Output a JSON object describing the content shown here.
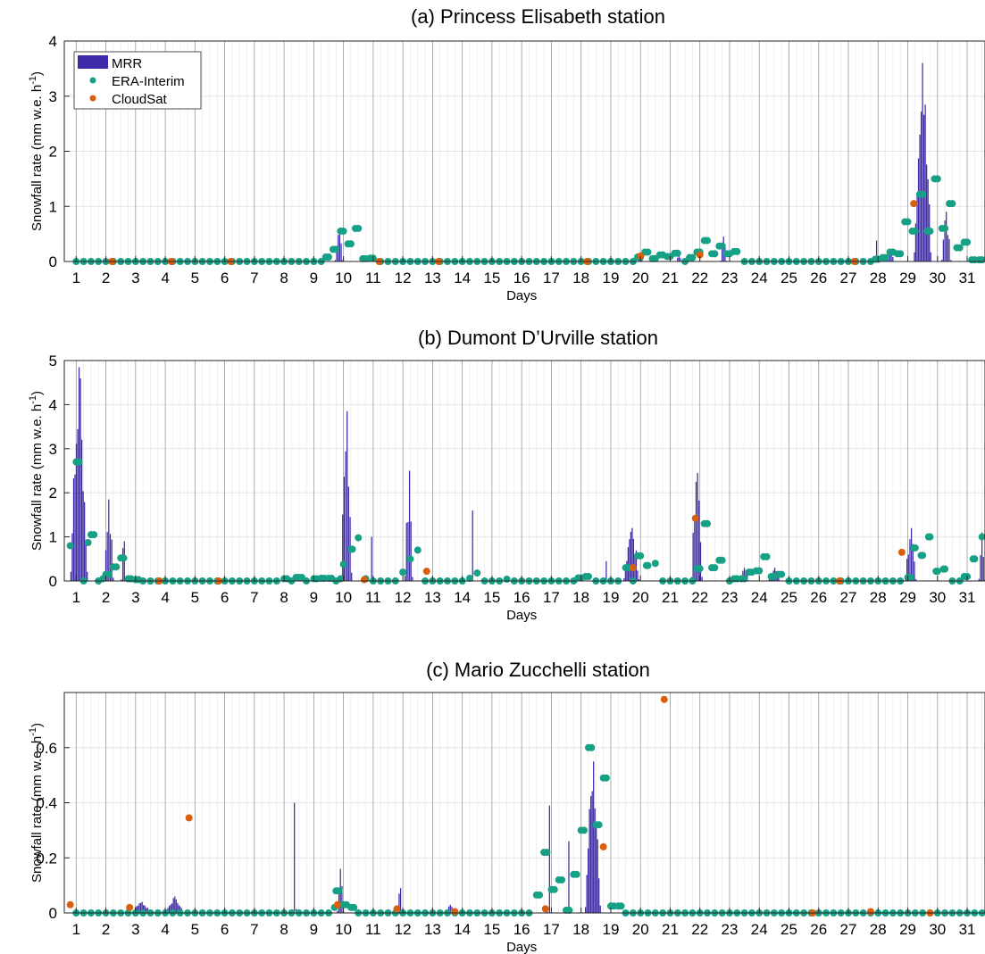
{
  "colors": {
    "mrr": "#3d2aa6",
    "era": "#16a085",
    "cloudsat": "#d95f0e",
    "grid": "#e6e6e6",
    "dayline": "#999999"
  },
  "legend": {
    "items": [
      "MRR",
      "ERA-Interim",
      "CloudSat"
    ]
  },
  "chart_data": [
    {
      "type": "bar",
      "title": "(a) Princess Elisabeth station",
      "xlabel": "Days",
      "ylabel": "Snowfall rate (mm w.e. h",
      "ylabel_sup": "-1",
      "ylabel_end": ")",
      "xlim": [
        0.6,
        31.6
      ],
      "ylim": [
        0,
        4
      ],
      "yticks": [
        "0",
        "1",
        "2",
        "3",
        "4"
      ],
      "xticks": [
        "1",
        "2",
        "3",
        "4",
        "5",
        "6",
        "7",
        "8",
        "9",
        "10",
        "11",
        "12",
        "13",
        "14",
        "15",
        "16",
        "17",
        "18",
        "19",
        "20",
        "21",
        "22",
        "23",
        "24",
        "25",
        "26",
        "27",
        "28",
        "29",
        "30",
        "31"
      ],
      "grid": true,
      "legend_position": "top-left",
      "mrr_peaks": [
        {
          "day": 9.85,
          "height": 0.6,
          "width": 0.25
        },
        {
          "day": 20.0,
          "height": 0.12,
          "width": 0.2
        },
        {
          "day": 21.3,
          "height": 0.1,
          "width": 0.2
        },
        {
          "day": 22.8,
          "height": 0.45,
          "width": 0.2
        },
        {
          "day": 27.9,
          "height": 0.38,
          "width": 0.1
        },
        {
          "day": 28.4,
          "height": 0.2,
          "width": 0.3
        },
        {
          "day": 29.5,
          "height": 3.6,
          "width": 0.55
        },
        {
          "day": 30.3,
          "height": 0.9,
          "width": 0.3
        }
      ],
      "era_nonzero": [
        {
          "x": 9.4,
          "y": 0.08
        },
        {
          "x": 9.65,
          "y": 0.22
        },
        {
          "x": 9.9,
          "y": 0.55
        },
        {
          "x": 10.15,
          "y": 0.32
        },
        {
          "x": 10.4,
          "y": 0.6
        },
        {
          "x": 10.65,
          "y": 0.05
        },
        {
          "x": 10.9,
          "y": 0.06
        },
        {
          "x": 19.9,
          "y": 0.08
        },
        {
          "x": 20.15,
          "y": 0.17
        },
        {
          "x": 20.4,
          "y": 0.05
        },
        {
          "x": 20.65,
          "y": 0.12
        },
        {
          "x": 20.9,
          "y": 0.09
        },
        {
          "x": 21.15,
          "y": 0.15
        },
        {
          "x": 21.65,
          "y": 0.07
        },
        {
          "x": 21.9,
          "y": 0.17
        },
        {
          "x": 22.15,
          "y": 0.38
        },
        {
          "x": 22.4,
          "y": 0.14
        },
        {
          "x": 22.65,
          "y": 0.28
        },
        {
          "x": 22.9,
          "y": 0.14
        },
        {
          "x": 23.15,
          "y": 0.18
        },
        {
          "x": 27.9,
          "y": 0.04
        },
        {
          "x": 28.15,
          "y": 0.07
        },
        {
          "x": 28.4,
          "y": 0.17
        },
        {
          "x": 28.65,
          "y": 0.14
        },
        {
          "x": 28.9,
          "y": 0.72
        },
        {
          "x": 29.15,
          "y": 0.55
        },
        {
          "x": 29.4,
          "y": 1.22
        },
        {
          "x": 29.65,
          "y": 0.55
        },
        {
          "x": 29.9,
          "y": 1.5
        },
        {
          "x": 30.15,
          "y": 0.6
        },
        {
          "x": 30.4,
          "y": 1.05
        },
        {
          "x": 30.65,
          "y": 0.25
        },
        {
          "x": 30.9,
          "y": 0.35
        },
        {
          "x": 31.15,
          "y": 0.03
        },
        {
          "x": 31.4,
          "y": 0.03
        }
      ],
      "cloudsat": [
        {
          "x": 2.2,
          "y": 0
        },
        {
          "x": 4.2,
          "y": 0
        },
        {
          "x": 6.2,
          "y": 0
        },
        {
          "x": 11.2,
          "y": 0
        },
        {
          "x": 13.2,
          "y": 0
        },
        {
          "x": 18.2,
          "y": 0
        },
        {
          "x": 20.0,
          "y": 0.1
        },
        {
          "x": 22.0,
          "y": 0.12
        },
        {
          "x": 27.2,
          "y": 0
        },
        {
          "x": 29.2,
          "y": 1.05
        }
      ]
    },
    {
      "type": "bar",
      "title": "(b) Dumont D’Urville station",
      "xlabel": "Days",
      "ylabel": "Snowfall rate (mm w.e. h",
      "ylabel_sup": "-1",
      "ylabel_end": ")",
      "xlim": [
        0.6,
        31.6
      ],
      "ylim": [
        0,
        5
      ],
      "yticks": [
        "0",
        "1",
        "2",
        "3",
        "4",
        "5"
      ],
      "xticks": [
        "1",
        "2",
        "3",
        "4",
        "5",
        "6",
        "7",
        "8",
        "9",
        "10",
        "11",
        "12",
        "13",
        "14",
        "15",
        "16",
        "17",
        "18",
        "19",
        "20",
        "21",
        "22",
        "23",
        "24",
        "25",
        "26",
        "27",
        "28",
        "29",
        "30",
        "31"
      ],
      "grid": true,
      "mrr_peaks": [
        {
          "day": 1.1,
          "height": 4.85,
          "width": 0.55
        },
        {
          "day": 2.1,
          "height": 1.85,
          "width": 0.3
        },
        {
          "day": 2.6,
          "height": 0.9,
          "width": 0.15
        },
        {
          "day": 10.1,
          "height": 3.85,
          "width": 0.35
        },
        {
          "day": 10.9,
          "height": 1.0,
          "width": 0.1
        },
        {
          "day": 12.2,
          "height": 2.5,
          "width": 0.25
        },
        {
          "day": 14.3,
          "height": 1.6,
          "width": 0.1
        },
        {
          "day": 18.8,
          "height": 0.45,
          "width": 0.1
        },
        {
          "day": 19.7,
          "height": 1.2,
          "width": 0.5
        },
        {
          "day": 21.9,
          "height": 2.45,
          "width": 0.35
        },
        {
          "day": 23.5,
          "height": 0.3,
          "width": 0.3
        },
        {
          "day": 24.5,
          "height": 0.3,
          "width": 0.4
        },
        {
          "day": 29.1,
          "height": 1.2,
          "width": 0.35
        },
        {
          "day": 31.5,
          "height": 1.1,
          "width": 0.2
        }
      ],
      "era_nonzero": [
        {
          "x": 0.8,
          "y": 0.8
        },
        {
          "x": 1.1,
          "y": 2.7
        },
        {
          "x": 1.4,
          "y": 0.87
        },
        {
          "x": 1.6,
          "y": 1.05
        },
        {
          "x": 1.9,
          "y": 0.05
        },
        {
          "x": 2.1,
          "y": 0.15
        },
        {
          "x": 2.35,
          "y": 0.32
        },
        {
          "x": 2.6,
          "y": 0.52
        },
        {
          "x": 2.85,
          "y": 0.05
        },
        {
          "x": 3.1,
          "y": 0.03
        },
        {
          "x": 8.1,
          "y": 0.05
        },
        {
          "x": 8.4,
          "y": 0.08
        },
        {
          "x": 8.6,
          "y": 0.08
        },
        {
          "x": 9.1,
          "y": 0.05
        },
        {
          "x": 9.35,
          "y": 0.06
        },
        {
          "x": 9.6,
          "y": 0.06
        },
        {
          "x": 9.9,
          "y": 0.05
        },
        {
          "x": 10.0,
          "y": 0.38
        },
        {
          "x": 10.3,
          "y": 0.72
        },
        {
          "x": 10.5,
          "y": 0.98
        },
        {
          "x": 10.75,
          "y": 0.05
        },
        {
          "x": 12.0,
          "y": 0.2
        },
        {
          "x": 12.25,
          "y": 0.5
        },
        {
          "x": 12.5,
          "y": 0.7
        },
        {
          "x": 14.25,
          "y": 0.06
        },
        {
          "x": 14.5,
          "y": 0.18
        },
        {
          "x": 15.5,
          "y": 0.04
        },
        {
          "x": 17.9,
          "y": 0.07
        },
        {
          "x": 18.15,
          "y": 0.1
        },
        {
          "x": 19.6,
          "y": 0.3
        },
        {
          "x": 19.9,
          "y": 0.57
        },
        {
          "x": 20.2,
          "y": 0.35
        },
        {
          "x": 20.5,
          "y": 0.4
        },
        {
          "x": 21.9,
          "y": 0.28
        },
        {
          "x": 22.15,
          "y": 1.3
        },
        {
          "x": 22.4,
          "y": 0.3
        },
        {
          "x": 22.65,
          "y": 0.47
        },
        {
          "x": 23.15,
          "y": 0.05
        },
        {
          "x": 23.4,
          "y": 0.05
        },
        {
          "x": 23.65,
          "y": 0.2
        },
        {
          "x": 23.9,
          "y": 0.23
        },
        {
          "x": 24.15,
          "y": 0.55
        },
        {
          "x": 24.4,
          "y": 0.1
        },
        {
          "x": 24.65,
          "y": 0.15
        },
        {
          "x": 29.1,
          "y": 0.08
        },
        {
          "x": 29.2,
          "y": 0.75
        },
        {
          "x": 29.45,
          "y": 0.58
        },
        {
          "x": 29.7,
          "y": 1.0
        },
        {
          "x": 29.95,
          "y": 0.22
        },
        {
          "x": 30.2,
          "y": 0.27
        },
        {
          "x": 30.9,
          "y": 0.1
        },
        {
          "x": 31.2,
          "y": 0.5
        },
        {
          "x": 31.5,
          "y": 1.0
        }
      ],
      "cloudsat": [
        {
          "x": 3.8,
          "y": 0
        },
        {
          "x": 5.8,
          "y": 0
        },
        {
          "x": 10.7,
          "y": 0.03
        },
        {
          "x": 12.8,
          "y": 0.22
        },
        {
          "x": 19.75,
          "y": 0.3
        },
        {
          "x": 21.85,
          "y": 1.42
        },
        {
          "x": 26.7,
          "y": 0
        },
        {
          "x": 28.8,
          "y": 0.65
        }
      ]
    },
    {
      "type": "bar",
      "title": "(c) Mario Zucchelli station",
      "xlabel": "Days",
      "ylabel": "Snowfall rate (mm w.e. h",
      "ylabel_sup": "-1",
      "ylabel_end": ")",
      "xlim": [
        0.6,
        31.6
      ],
      "ylim": [
        0,
        0.8
      ],
      "yticks": [
        "0",
        "0.2",
        "0.4",
        "0.6"
      ],
      "ytick_values": [
        0,
        0.2,
        0.4,
        0.6
      ],
      "xticks": [
        "1",
        "2",
        "3",
        "4",
        "5",
        "6",
        "7",
        "8",
        "9",
        "10",
        "11",
        "12",
        "13",
        "14",
        "15",
        "16",
        "17",
        "18",
        "19",
        "20",
        "21",
        "22",
        "23",
        "24",
        "25",
        "26",
        "27",
        "28",
        "29",
        "30",
        "31"
      ],
      "grid": true,
      "mrr_peaks": [
        {
          "day": 3.2,
          "height": 0.04,
          "width": 0.6
        },
        {
          "day": 4.3,
          "height": 0.06,
          "width": 0.6
        },
        {
          "day": 8.35,
          "height": 0.4,
          "width": 0.12
        },
        {
          "day": 9.9,
          "height": 0.16,
          "width": 0.2
        },
        {
          "day": 11.9,
          "height": 0.09,
          "width": 0.15
        },
        {
          "day": 13.6,
          "height": 0.03,
          "width": 0.3
        },
        {
          "day": 16.9,
          "height": 0.39,
          "width": 0.08
        },
        {
          "day": 17.55,
          "height": 0.26,
          "width": 0.08
        },
        {
          "day": 18.4,
          "height": 0.55,
          "width": 0.5
        }
      ],
      "era_nonzero": [
        {
          "x": 9.7,
          "y": 0.02
        },
        {
          "x": 9.85,
          "y": 0.08
        },
        {
          "x": 10.1,
          "y": 0.03
        },
        {
          "x": 10.35,
          "y": 0.02
        },
        {
          "x": 16.6,
          "y": 0.065
        },
        {
          "x": 16.85,
          "y": 0.22
        },
        {
          "x": 17.1,
          "y": 0.085
        },
        {
          "x": 17.35,
          "y": 0.12
        },
        {
          "x": 17.6,
          "y": 0.01
        },
        {
          "x": 17.85,
          "y": 0.14
        },
        {
          "x": 18.1,
          "y": 0.3
        },
        {
          "x": 18.35,
          "y": 0.6
        },
        {
          "x": 18.6,
          "y": 0.32
        },
        {
          "x": 18.85,
          "y": 0.49
        },
        {
          "x": 19.1,
          "y": 0.025
        },
        {
          "x": 19.35,
          "y": 0.025
        }
      ],
      "cloudsat": [
        {
          "x": 0.8,
          "y": 0.03
        },
        {
          "x": 2.8,
          "y": 0.02
        },
        {
          "x": 4.8,
          "y": 0.345
        },
        {
          "x": 9.8,
          "y": 0.03
        },
        {
          "x": 11.8,
          "y": 0.015
        },
        {
          "x": 13.75,
          "y": 0.005
        },
        {
          "x": 16.8,
          "y": 0.015
        },
        {
          "x": 18.75,
          "y": 0.24
        },
        {
          "x": 20.8,
          "y": 0.775
        },
        {
          "x": 25.8,
          "y": 0
        },
        {
          "x": 27.75,
          "y": 0.005
        },
        {
          "x": 29.75,
          "y": 0
        }
      ]
    }
  ]
}
